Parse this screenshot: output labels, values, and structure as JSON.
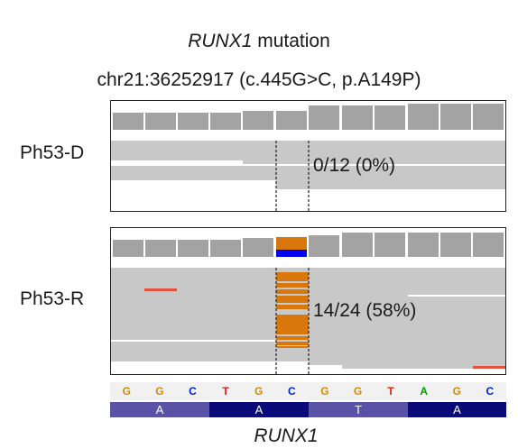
{
  "header": {
    "gene": "RUNX1",
    "suffix": " mutation",
    "position": "chr21:36252917 (c.445G>C, p.A149P)"
  },
  "tracks": [
    {
      "sample": "Ph53-D",
      "vaf_label": "0/12 (0%)",
      "mutant_reads": 0,
      "total_reads": 12
    },
    {
      "sample": "Ph53-R",
      "vaf_label": "14/24 (58%)",
      "mutant_reads": 14,
      "total_reads": 24
    }
  ],
  "reference": {
    "bases": [
      "G",
      "G",
      "C",
      "T",
      "G",
      "C",
      "G",
      "G",
      "T",
      "A",
      "G",
      "C"
    ],
    "amino_acids": [
      "A",
      "A",
      "T",
      "A"
    ]
  },
  "gene_label": "RUNX1",
  "colors": {
    "read": "#c8c8c8",
    "coverage": "#a3a3a3",
    "mismatch_C": "#d8770b",
    "coverage_C": "#0000ee",
    "soft_clip": "#e5513f",
    "base_G": "#d38a00",
    "base_C": "#0020cc",
    "base_T": "#dd2020",
    "base_A": "#00a000",
    "aa_light": "#5a52a6",
    "aa_dark": "#0a0a78"
  }
}
